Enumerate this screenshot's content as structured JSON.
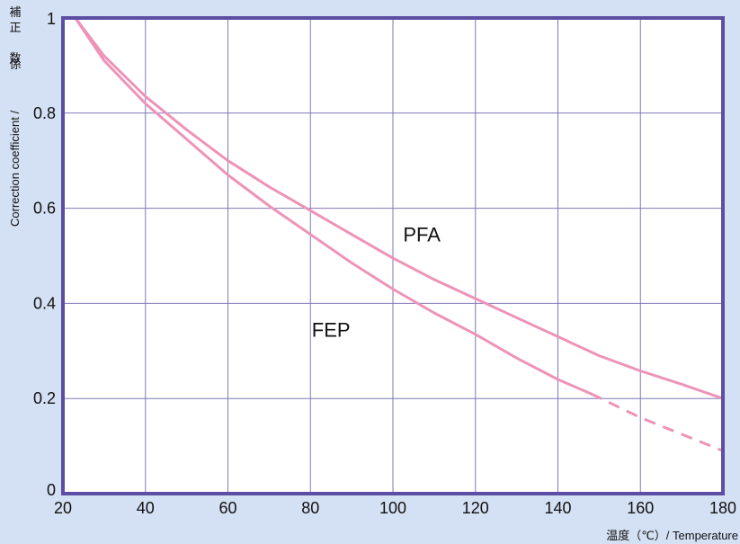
{
  "colors": {
    "background": "#d4e0f3",
    "plot_background": "#ffffff",
    "frame": "#5b4ea3",
    "grid": "#7f78b8",
    "series": "#ee93b8"
  },
  "chart_data": {
    "type": "line",
    "title": "",
    "xlabel": "温度（℃）/ Temperature",
    "ylabel": "補正係数 / Correction coefficient",
    "ylabel_ja": "補正係数",
    "ylabel_sep": "/",
    "ylabel_en": "Correction coefficient",
    "xlim": [
      20,
      180
    ],
    "ylim": [
      0,
      1
    ],
    "x_ticks": [
      20,
      40,
      60,
      80,
      100,
      120,
      140,
      160,
      180
    ],
    "x_tick_labels": [
      "20",
      "40",
      "60",
      "80",
      "100",
      "120",
      "140",
      "160",
      "180"
    ],
    "y_ticks": [
      0,
      0.2,
      0.4,
      0.6,
      0.8,
      1
    ],
    "y_tick_labels": [
      "0",
      "0.2",
      "0.4",
      "0.6",
      "0.8",
      "1"
    ],
    "grid": true,
    "legend": "inline labels",
    "series": [
      {
        "name": "PFA",
        "label_at": [
          107,
          0.53
        ],
        "x": [
          23,
          30,
          40,
          50,
          60,
          70,
          80,
          90,
          100,
          110,
          120,
          130,
          140,
          150,
          160,
          170,
          180
        ],
        "values": [
          1.0,
          0.92,
          0.835,
          0.765,
          0.7,
          0.645,
          0.595,
          0.545,
          0.495,
          0.45,
          0.41,
          0.37,
          0.33,
          0.29,
          0.258,
          0.23,
          0.2
        ]
      },
      {
        "name": "FEP",
        "label_at": [
          85,
          0.33
        ],
        "x": [
          23,
          30,
          40,
          50,
          60,
          70,
          80,
          90,
          100,
          110,
          120,
          130,
          140,
          148
        ],
        "values": [
          1.0,
          0.91,
          0.82,
          0.745,
          0.67,
          0.605,
          0.545,
          0.485,
          0.43,
          0.38,
          0.335,
          0.285,
          0.24,
          0.21
        ],
        "dashed_x": [
          148,
          160,
          170,
          180
        ],
        "dashed_values": [
          0.21,
          0.16,
          0.125,
          0.09
        ]
      }
    ]
  }
}
